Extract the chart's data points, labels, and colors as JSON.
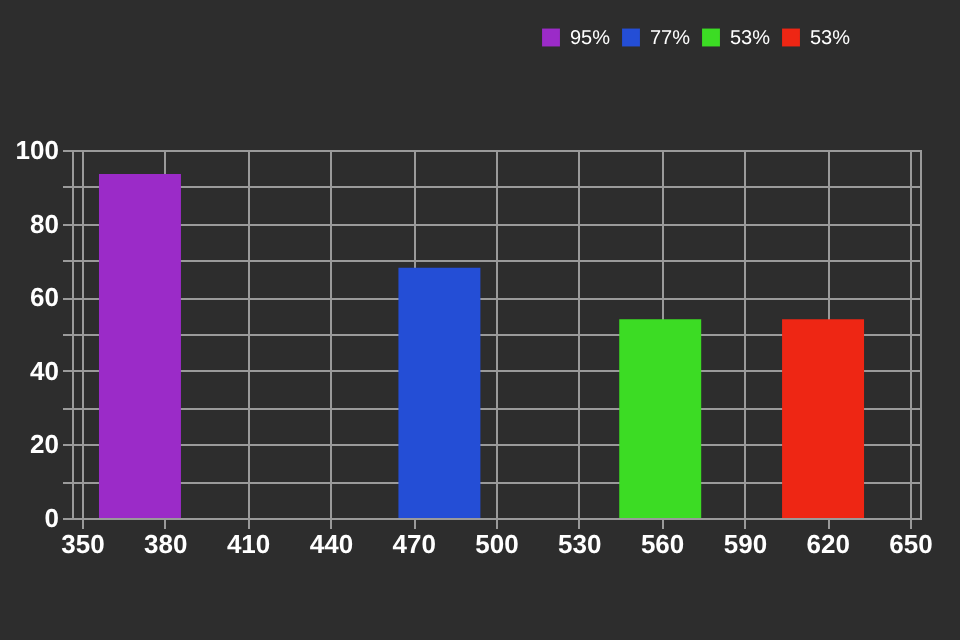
{
  "chart_data": {
    "type": "bar",
    "series": [
      {
        "name": "95%",
        "color": "#9b2bc8",
        "x": [
          371
        ],
        "values": [
          93.5
        ]
      },
      {
        "name": "77%",
        "color": "#244ed6",
        "x": [
          479.5
        ],
        "values": [
          68
        ]
      },
      {
        "name": "53%",
        "color": "#3cdc24",
        "x": [
          559.5
        ],
        "values": [
          54
        ]
      },
      {
        "name": "53%",
        "color": "#ee2614",
        "x": [
          618.5
        ],
        "values": [
          54
        ]
      }
    ],
    "xlim": [
      350,
      650
    ],
    "xticks": [
      350,
      380,
      410,
      440,
      470,
      500,
      530,
      560,
      590,
      620,
      650
    ],
    "ylim": [
      0,
      100
    ],
    "yticks": [
      0,
      {
        "value": 10,
        "label": null
      },
      20,
      {
        "value": 30,
        "label": null
      },
      40,
      {
        "value": 50,
        "label": null
      },
      60,
      {
        "value": 70,
        "label": null
      },
      80,
      {
        "value": 90,
        "label": null
      },
      100
    ],
    "grid": true,
    "legend": "top right"
  }
}
